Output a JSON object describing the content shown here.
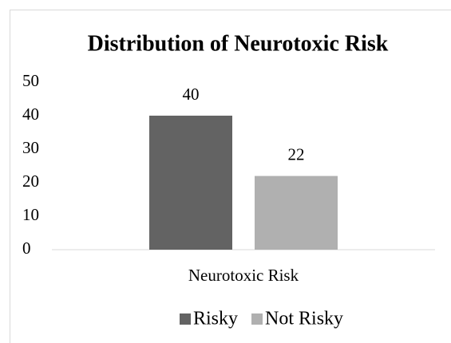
{
  "chart_data": {
    "type": "bar",
    "title": "Distribution of Neurotoxic Risk",
    "categories": [
      "Neurotoxic Risk"
    ],
    "series": [
      {
        "name": "Risky",
        "color": "#636363",
        "values": [
          40
        ]
      },
      {
        "name": "Not Risky",
        "color": "#b0b0b0",
        "values": [
          22
        ]
      }
    ],
    "ylim": [
      0,
      50
    ],
    "yticks": [
      0,
      10,
      20,
      30,
      40,
      50
    ],
    "grid": false,
    "legend": "bottom"
  }
}
